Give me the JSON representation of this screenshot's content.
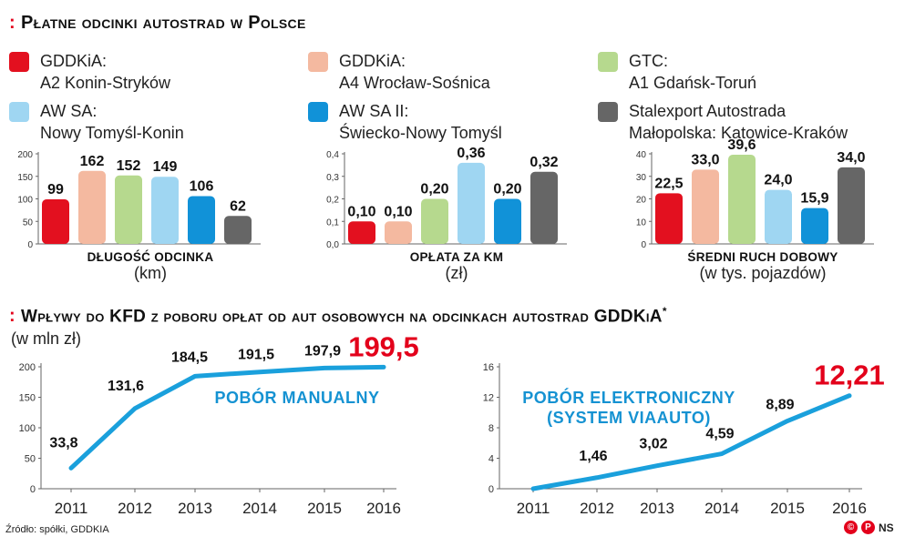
{
  "sections": {
    "top_title": "Płatne odcinki autostrad w Polsce",
    "bottom_title": "Wpływy do KFD z poboru opłat od aut osobowych na odcinkach autostrad GDDKiA",
    "bottom_title_star": "*",
    "bottom_unit": "(w mln zł)",
    "marker": ":"
  },
  "legend": [
    {
      "line1": "GDDKiA:",
      "line2": "A2 Konin-Stryków",
      "color": "#e3101f"
    },
    {
      "line1": "GDDKiA:",
      "line2": "A4 Wrocław-Sośnica",
      "color": "#f4b9a0"
    },
    {
      "line1": "GTC:",
      "line2": "A1 Gdańsk-Toruń",
      "color": "#b6d98e"
    },
    {
      "line1": "AW SA:",
      "line2": "Nowy Tomyśl-Konin",
      "color": "#9fd6f2"
    },
    {
      "line1": "AW SA II:",
      "line2": "Świecko-Nowy Tomyśl",
      "color": "#1192d8"
    },
    {
      "line1": "Stalexport Autostrada",
      "line2": "Małopolska: Katowice-Kraków",
      "color": "#666666"
    }
  ],
  "chart_data": [
    {
      "type": "bar",
      "title": "DŁUGOŚĆ ODCINKA",
      "unit": "(km)",
      "categories": [
        "GDDKiA: A2 Konin-Stryków",
        "GDDKiA: A4 Wrocław-Sośnica",
        "GTC: A1 Gdańsk-Toruń",
        "AW SA: Nowy Tomyśl-Konin",
        "AW SA II: Świecko-Nowy Tomyśl",
        "Stalexport Autostrada Małopolska: Katowice-Kraków"
      ],
      "values": [
        99,
        162,
        152,
        149,
        106,
        62
      ],
      "value_labels": [
        "99",
        "162",
        "152",
        "149",
        "106",
        "62"
      ],
      "ylim": [
        0,
        200
      ],
      "yticks": [
        0,
        50,
        100,
        150,
        200
      ],
      "ytick_labels": [
        "0",
        "50",
        "100",
        "150",
        "200"
      ]
    },
    {
      "type": "bar",
      "title": "OPŁATA ZA KM",
      "unit": "(zł)",
      "categories": [
        "GDDKiA: A2 Konin-Stryków",
        "GDDKiA: A4 Wrocław-Sośnica",
        "GTC: A1 Gdańsk-Toruń",
        "AW SA: Nowy Tomyśl-Konin",
        "AW SA II: Świecko-Nowy Tomyśl",
        "Stalexport Autostrada Małopolska: Katowice-Kraków"
      ],
      "values": [
        0.1,
        0.1,
        0.2,
        0.36,
        0.2,
        0.32
      ],
      "value_labels": [
        "0,10",
        "0,10",
        "0,20",
        "0,36",
        "0,20",
        "0,32"
      ],
      "ylim": [
        0,
        0.4
      ],
      "yticks": [
        0,
        0.1,
        0.2,
        0.3,
        0.4
      ],
      "ytick_labels": [
        "0,0",
        "0,1",
        "0,2",
        "0,3",
        "0,4"
      ]
    },
    {
      "type": "bar",
      "title": "ŚREDNI RUCH DOBOWY",
      "unit": "(w tys. pojazdów)",
      "categories": [
        "GDDKiA: A2 Konin-Stryków",
        "GDDKiA: A4 Wrocław-Sośnica",
        "GTC: A1 Gdańsk-Toruń",
        "AW SA: Nowy Tomyśl-Konin",
        "AW SA II: Świecko-Nowy Tomyśl",
        "Stalexport Autostrada Małopolska: Katowice-Kraków"
      ],
      "values": [
        22.5,
        33.0,
        39.6,
        24.0,
        15.9,
        34.0
      ],
      "value_labels": [
        "22,5",
        "33,0",
        "39,6",
        "24,0",
        "15,9",
        "34,0"
      ],
      "ylim": [
        0,
        40
      ],
      "yticks": [
        0,
        10,
        20,
        30,
        40
      ],
      "ytick_labels": [
        "0",
        "10",
        "20",
        "30",
        "40"
      ]
    },
    {
      "type": "line",
      "series_label": "POBÓR MANUALNY",
      "x": [
        "2011",
        "2012",
        "2013",
        "2014",
        "2015",
        "2016"
      ],
      "values": [
        33.8,
        131.6,
        184.5,
        191.5,
        197.9,
        199.5
      ],
      "value_labels": [
        "33,8",
        "131,6",
        "184,5",
        "191,5",
        "197,9",
        "199,5"
      ],
      "ylim": [
        0,
        200
      ],
      "yticks": [
        0,
        50,
        100,
        150,
        200
      ],
      "ytick_labels": [
        "0",
        "50",
        "100",
        "150",
        "200"
      ]
    },
    {
      "type": "line",
      "series_label": [
        "POBÓR ELEKTRONICZNY",
        "(SYSTEM VIAAUTO)"
      ],
      "x": [
        "2011",
        "2012",
        "2013",
        "2014",
        "2015",
        "2016"
      ],
      "values": [
        0,
        1.46,
        3.02,
        4.59,
        8.89,
        12.21
      ],
      "value_labels": [
        "",
        "1,46",
        "3,02",
        "4,59",
        "8,89",
        "12,21"
      ],
      "ylim": [
        0,
        16
      ],
      "yticks": [
        0,
        4,
        8,
        12,
        16
      ],
      "ytick_labels": [
        "0",
        "4",
        "8",
        "12",
        "16"
      ]
    }
  ],
  "colors": {
    "accent_red": "#e3001b",
    "line_blue": "#1aa0dc",
    "series_label_blue": "#1592d2"
  },
  "footer": {
    "source": "Źródło: spółki, GDDKIA",
    "logo_text": "NS",
    "logo_icons": [
      "copyright-icon",
      "p-icon"
    ]
  }
}
